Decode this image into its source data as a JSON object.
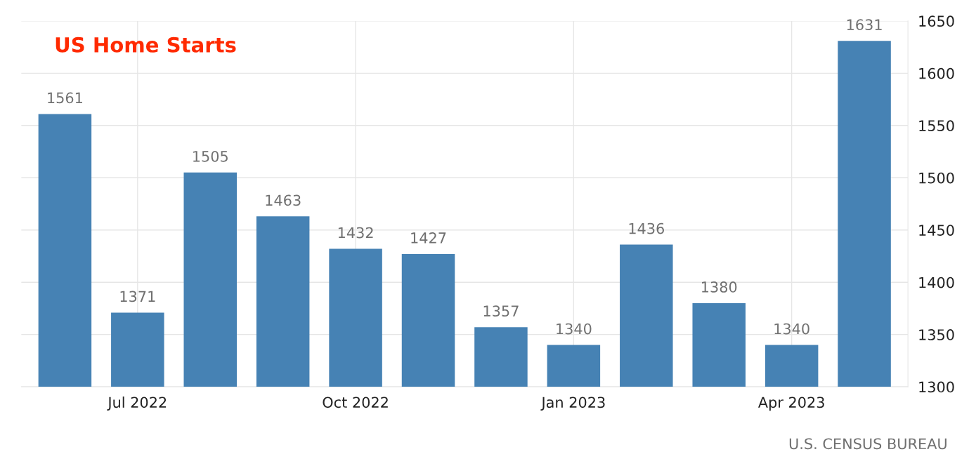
{
  "chart_data": {
    "type": "bar",
    "title": "US Home Starts",
    "categories": [
      null,
      "Jul 2022",
      null,
      null,
      "Oct 2022",
      null,
      null,
      "Jan 2023",
      null,
      null,
      "Apr 2023",
      null
    ],
    "values": [
      1561,
      1371,
      1505,
      1463,
      1432,
      1427,
      1357,
      1340,
      1436,
      1380,
      1340,
      1631
    ],
    "color": "#4682b4",
    "ylim": [
      1300,
      1650
    ],
    "yticks": [
      1300,
      1350,
      1400,
      1450,
      1500,
      1550,
      1600,
      1650
    ],
    "grid": true,
    "data_labels": true,
    "annotations": [
      "U.S. CENSUS BUREAU"
    ]
  }
}
